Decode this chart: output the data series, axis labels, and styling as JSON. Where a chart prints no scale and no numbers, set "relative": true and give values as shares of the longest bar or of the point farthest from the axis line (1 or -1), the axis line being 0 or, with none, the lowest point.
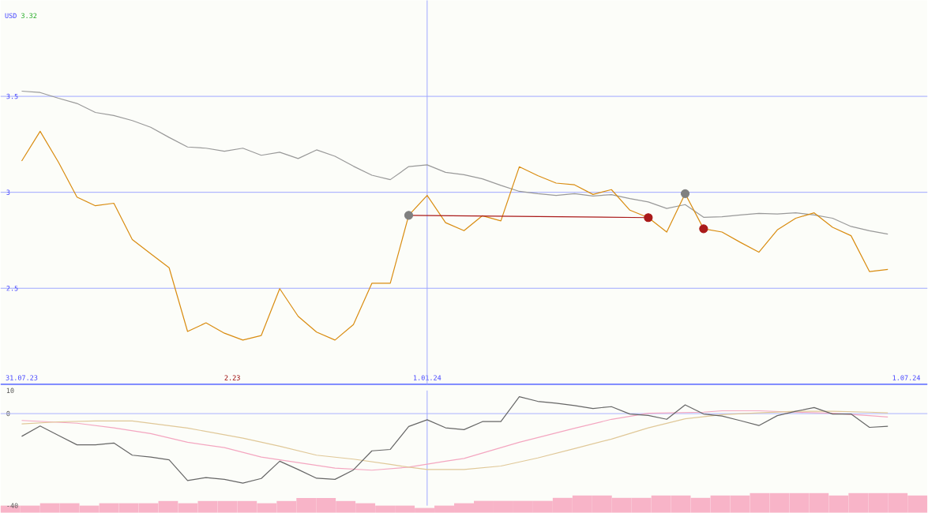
{
  "chart_data": [
    {
      "type": "line",
      "ylabel": "USD",
      "annotations": [
        "3.32",
        "2.23"
      ],
      "x": [
        "2023-07-31",
        "2023-08-07",
        "2023-08-14",
        "2023-08-21",
        "2023-08-28",
        "2023-09-04",
        "2023-09-11",
        "2023-09-18",
        "2023-09-25",
        "2023-10-02",
        "2023-10-09",
        "2023-10-16",
        "2023-10-23",
        "2023-10-30",
        "2023-11-06",
        "2023-11-13",
        "2023-11-20",
        "2023-11-27",
        "2023-12-04",
        "2023-12-11",
        "2023-12-18",
        "2023-12-25",
        "2024-01-01",
        "2024-01-08",
        "2024-01-15",
        "2024-01-22",
        "2024-01-29",
        "2024-02-05",
        "2024-02-12",
        "2024-02-19",
        "2024-02-26",
        "2024-03-04",
        "2024-03-11",
        "2024-03-18",
        "2024-03-25",
        "2024-04-01",
        "2024-04-08",
        "2024-04-15",
        "2024-04-22",
        "2024-04-29",
        "2024-05-06",
        "2024-05-13",
        "2024-05-20",
        "2024-05-27",
        "2024-06-03",
        "2024-06-10",
        "2024-06-17",
        "2024-06-24"
      ],
      "xlim": [
        "2023-07-23",
        "2024-07-09"
      ],
      "xticks": [
        {
          "value": "2023-07-31",
          "label": "31.07.23"
        },
        {
          "value": "2024-01-01",
          "label": "1.01.24"
        },
        {
          "value": "2024-07-01",
          "label": "1.07.24"
        }
      ],
      "ylim": [
        2,
        4
      ],
      "yticks": [
        2.5,
        3,
        3.5
      ],
      "grid": "y",
      "ref_lines": [
        {
          "axis": "x",
          "value": "2024-01-01",
          "color": "#a0a8ff"
        }
      ],
      "series": [
        {
          "color": "#999999",
          "values": [
            3.527,
            3.52,
            3.49,
            3.463,
            3.416,
            3.4,
            3.374,
            3.339,
            3.286,
            3.236,
            3.23,
            3.214,
            3.23,
            3.193,
            3.209,
            3.176,
            3.221,
            3.188,
            3.136,
            3.089,
            3.066,
            3.134,
            3.143,
            3.104,
            3.092,
            3.07,
            3.036,
            3.005,
            2.993,
            2.984,
            2.993,
            2.981,
            2.988,
            2.967,
            2.95,
            2.916,
            2.936,
            2.87,
            2.873,
            2.882,
            2.89,
            2.887,
            2.893,
            2.882,
            2.865,
            2.822,
            2.8,
            2.782
          ]
        },
        {
          "color": "#d98c10",
          "values": [
            3.163,
            3.318,
            3.156,
            2.975,
            2.93,
            2.943,
            2.754,
            2.68,
            2.607,
            2.275,
            2.32,
            2.266,
            2.23,
            2.254,
            2.498,
            2.354,
            2.272,
            2.23,
            2.311,
            2.526,
            2.526,
            2.88,
            2.984,
            2.842,
            2.8,
            2.878,
            2.851,
            3.133,
            3.087,
            3.048,
            3.039,
            2.989,
            3.014,
            2.907,
            2.868,
            2.793,
            2.993,
            2.81,
            2.793,
            2.739,
            2.688,
            2.804,
            2.865,
            2.893,
            2.818,
            2.774,
            2.587,
            2.598
          ]
        },
        {
          "type": "line",
          "color": "#aa1a1a",
          "x": [
            "2023-12-25",
            "2024-03-25"
          ],
          "values": [
            2.88,
            2.868
          ]
        },
        {
          "type": "scatter",
          "color": "#808080",
          "x": [
            "2023-12-25",
            "2024-04-08"
          ],
          "values": [
            2.88,
            2.993
          ]
        },
        {
          "type": "scatter",
          "color": "#aa1a1a",
          "x": [
            "2024-03-25",
            "2024-04-15"
          ],
          "values": [
            2.868,
            2.81
          ]
        }
      ]
    },
    {
      "type": "line",
      "xlim": [
        "2023-07-23",
        "2024-07-09"
      ],
      "ylim": [
        -40,
        10
      ],
      "yticks": [
        10,
        0,
        -40
      ],
      "tick_labels": "y",
      "ref_lines": [
        {
          "axis": "x",
          "value": "2024-01-01",
          "color": "#a0a8ff"
        },
        {
          "axis": "y",
          "value": 0,
          "color": "#a0a8ff"
        }
      ],
      "x": [
        "2023-07-31",
        "2023-08-07",
        "2023-08-14",
        "2023-08-21",
        "2023-08-28",
        "2023-09-04",
        "2023-09-11",
        "2023-09-18",
        "2023-09-25",
        "2023-10-02",
        "2023-10-09",
        "2023-10-16",
        "2023-10-23",
        "2023-10-30",
        "2023-11-06",
        "2023-11-13",
        "2023-11-20",
        "2023-11-27",
        "2023-12-04",
        "2023-12-11",
        "2023-12-18",
        "2023-12-25",
        "2024-01-01",
        "2024-01-08",
        "2024-01-15",
        "2024-01-22",
        "2024-01-29",
        "2024-02-05",
        "2024-02-12",
        "2024-02-19",
        "2024-02-26",
        "2024-03-04",
        "2024-03-11",
        "2024-03-18",
        "2024-03-25",
        "2024-04-01",
        "2024-04-08",
        "2024-04-15",
        "2024-04-22",
        "2024-04-29",
        "2024-05-06",
        "2024-05-13",
        "2024-05-20",
        "2024-05-27",
        "2024-06-03",
        "2024-06-10",
        "2024-06-17",
        "2024-06-24"
      ],
      "series": [
        {
          "color": "#f4a6c0",
          "x": [
            "2023-07-31",
            "2023-08-21",
            "2023-09-04",
            "2023-09-18",
            "2023-10-02",
            "2023-10-16",
            "2023-10-30",
            "2023-11-13",
            "2023-11-27",
            "2023-12-11",
            "2023-12-25",
            "2024-01-08",
            "2024-01-15",
            "2024-02-05",
            "2024-02-26",
            "2024-03-11",
            "2024-03-25",
            "2024-04-15",
            "2024-04-22",
            "2024-05-06",
            "2024-05-20",
            "2024-06-03",
            "2024-06-17",
            "2024-06-24"
          ],
          "values": [
            -3.0,
            -4.2,
            -6.2,
            -8.7,
            -12.5,
            -14.8,
            -18.9,
            -21.3,
            -23.7,
            -24.6,
            -23.3,
            -20.7,
            -19.5,
            -12.5,
            -6.4,
            -2.5,
            0.1,
            0.6,
            1.2,
            1.2,
            0.6,
            0.1,
            -0.9,
            -1.5
          ]
        },
        {
          "color": "#e0c898",
          "x": [
            "2023-07-31",
            "2023-08-14",
            "2023-08-28",
            "2023-09-11",
            "2023-10-02",
            "2023-10-23",
            "2023-11-06",
            "2023-11-20",
            "2023-12-04",
            "2023-12-18",
            "2023-12-25",
            "2024-01-01",
            "2024-01-15",
            "2024-01-29",
            "2024-02-12",
            "2024-02-26",
            "2024-03-11",
            "2024-03-25",
            "2024-04-08",
            "2024-04-22",
            "2024-05-06",
            "2024-05-20",
            "2024-06-03",
            "2024-06-17",
            "2024-06-24"
          ],
          "values": [
            -4.5,
            -3.6,
            -3.2,
            -3.2,
            -6.3,
            -10.7,
            -14.2,
            -18.1,
            -19.8,
            -22.1,
            -23.3,
            -24.3,
            -24.3,
            -22.8,
            -19.3,
            -15.2,
            -11.1,
            -6.2,
            -2.3,
            -0.5,
            0.3,
            1.0,
            1.0,
            0.6,
            0.3
          ]
        },
        {
          "color": "#666666",
          "values": [
            -9.9,
            -5.4,
            -9.5,
            -13.6,
            -13.6,
            -12.8,
            -18.1,
            -18.9,
            -20.1,
            -29.1,
            -27.8,
            -28.6,
            -30.2,
            -28.2,
            -20.7,
            -24.3,
            -28.1,
            -28.6,
            -24.5,
            -16.2,
            -15.6,
            -5.6,
            -2.7,
            -6.2,
            -7.0,
            -3.5,
            -3.5,
            7.3,
            5.3,
            4.5,
            3.5,
            2.2,
            3.0,
            -0.2,
            -0.8,
            -2.5,
            3.8,
            -0.2,
            -1.1,
            -3.1,
            -5.2,
            -0.9,
            1.0,
            2.6,
            -0.2,
            -0.2,
            -6.0,
            -5.5
          ]
        }
      ]
    },
    {
      "type": "bar",
      "relative": true,
      "color": "#f8b4c8",
      "categories": [
        null,
        null,
        null,
        null,
        null,
        null,
        null,
        null,
        null,
        null,
        null,
        null,
        null,
        null,
        null,
        null,
        null,
        null,
        null,
        null,
        null,
        null,
        null,
        null,
        null,
        null,
        null,
        null,
        null,
        null,
        null,
        null,
        null,
        null,
        null,
        null,
        null,
        null,
        null,
        null,
        null,
        null,
        null,
        null,
        null,
        null,
        null
      ],
      "values": [
        0.37,
        0.37,
        0.49,
        0.49,
        0.37,
        0.49,
        0.49,
        0.49,
        0.6,
        0.49,
        0.6,
        0.6,
        0.6,
        0.49,
        0.6,
        0.75,
        0.75,
        0.6,
        0.49,
        0.37,
        0.37,
        0.25,
        0.37,
        0.49,
        0.61,
        0.61,
        0.61,
        0.61,
        0.76,
        0.88,
        0.88,
        0.76,
        0.76,
        0.88,
        0.88,
        0.76,
        0.88,
        0.88,
        1,
        1,
        1,
        1,
        0.88,
        1,
        1,
        1,
        0.88
      ]
    }
  ]
}
